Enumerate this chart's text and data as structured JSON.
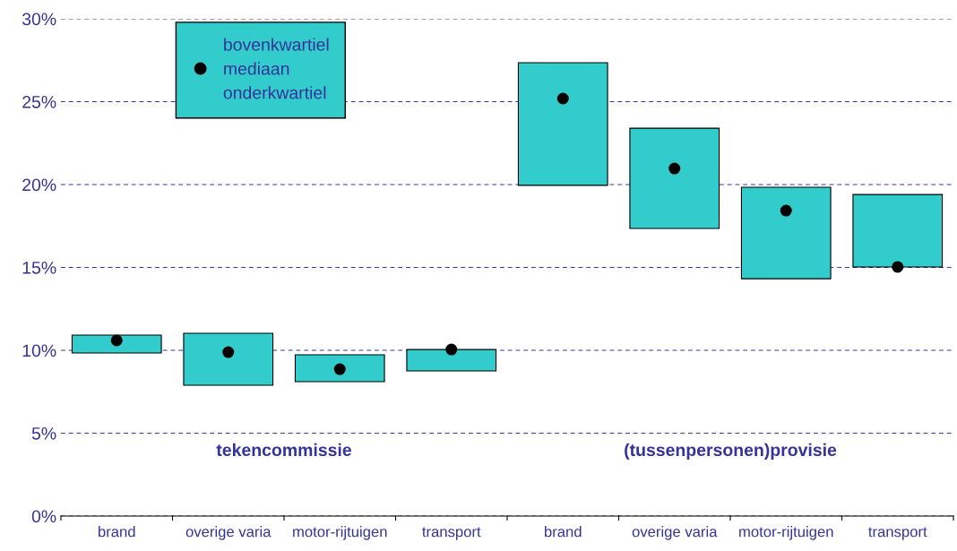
{
  "chart_data": {
    "type": "bar",
    "categories": [
      "brand",
      "overige varia",
      "motor-rijtuigen",
      "transport",
      "brand",
      "overige varia",
      "motor-rijtuigen",
      "transport"
    ],
    "series": [
      {
        "color": "#33cccc",
        "base": [
          9.84,
          7.89,
          8.11,
          8.76,
          19.95,
          17.35,
          14.32,
          15.03
        ],
        "values": [
          1.08,
          3.14,
          1.62,
          1.29,
          7.4,
          6.05,
          5.52,
          4.37
        ]
      },
      {
        "type": "scatter",
        "name": "mediaan",
        "color": "#000000",
        "values": [
          10.6,
          9.89,
          8.86,
          10.05,
          25.19,
          20.97,
          18.43,
          15.03
        ]
      }
    ],
    "ylim": [
      0,
      30
    ],
    "yticks": [
      {
        "value": 0,
        "label": "0%"
      },
      {
        "value": 5,
        "label": "5%"
      },
      {
        "value": 10,
        "label": "10%"
      },
      {
        "value": 15,
        "label": "15%"
      },
      {
        "value": 20,
        "label": "20%"
      },
      {
        "value": 25,
        "label": "25%"
      },
      {
        "value": 30,
        "label": "30%"
      }
    ],
    "grid": "y",
    "legend": "top left",
    "marker": "circle",
    "annotations": [
      "bovenkwartiel",
      "onderkwartiel",
      "tekencommissie",
      "(tussenpersonen)provisie"
    ]
  }
}
